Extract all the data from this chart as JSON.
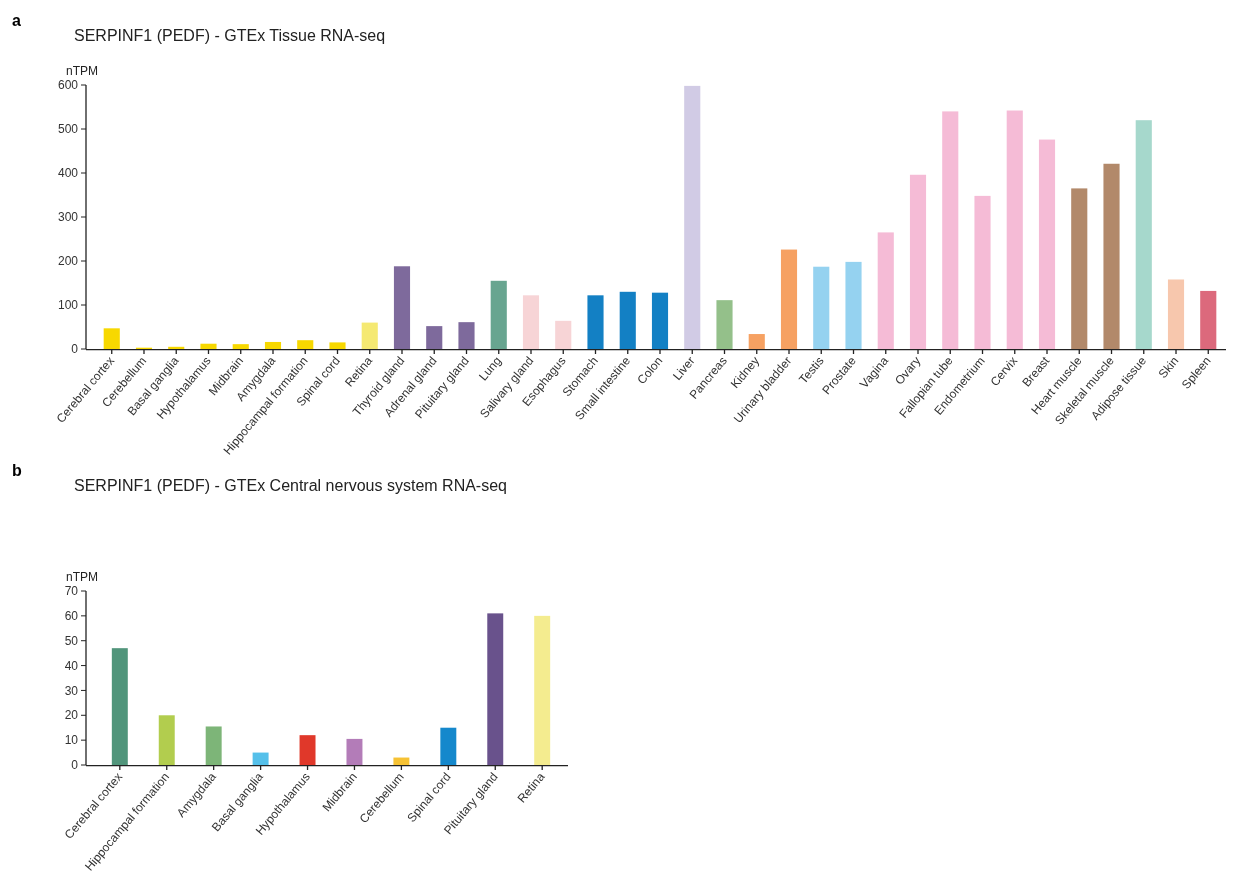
{
  "chart_data": [
    {
      "type": "bar",
      "title": "SERPINF1 (PEDF) - GTEx Tissue RNA-seq",
      "ylabel": "nTPM",
      "annotations": [
        "a"
      ],
      "categories": [
        "Cerebral cortex",
        "Cerebellum",
        "Basal ganglia",
        "Hypothalamus",
        "Midbrain",
        "Amygdala",
        "Hippocampal formation",
        "Spinal cord",
        "Retina",
        "Thyroid gland",
        "Adrenal gland",
        "Pituitary gland",
        "Lung",
        "Salivary gland",
        "Esophagus",
        "Stomach",
        "Small intestine",
        "Colon",
        "Liver",
        "Pancreas",
        "Kidney",
        "Urinary bladder",
        "Testis",
        "Prostate",
        "Vagina",
        "Ovary",
        "Fallopian tube",
        "Endometrium",
        "Cervix",
        "Breast",
        "Heart muscle",
        "Skeletal muscle",
        "Adipose tissue",
        "Skin",
        "Spleen"
      ],
      "values": [
        47,
        3,
        5,
        12,
        11,
        16,
        20,
        15,
        60,
        188,
        52,
        61,
        155,
        122,
        64,
        122,
        130,
        128,
        598,
        111,
        34,
        226,
        187,
        198,
        265,
        396,
        540,
        348,
        542,
        476,
        365,
        421,
        520,
        158,
        132
      ],
      "colors": [
        "#f7d800",
        "#f7d800",
        "#f7d800",
        "#f7d800",
        "#f7d800",
        "#f7d800",
        "#f7d800",
        "#f7d800",
        "#f5e972",
        "#7e6a9c",
        "#7e6a9c",
        "#7e6a9c",
        "#68a590",
        "#f7d4d6",
        "#f7d4d6",
        "#1380c4",
        "#1380c4",
        "#1380c4",
        "#d1cbe5",
        "#94c08a",
        "#f6a162",
        "#f6a162",
        "#95d2f0",
        "#95d2f0",
        "#f5bbd6",
        "#f5bbd6",
        "#f5bbd6",
        "#f5bbd6",
        "#f5bbd6",
        "#f5bbd6",
        "#b2896a",
        "#b2896a",
        "#a6d8cc",
        "#f7c7ad",
        "#dc697c"
      ],
      "ylim": [
        0,
        600
      ],
      "yticks": [
        0,
        100,
        200,
        300,
        400,
        500,
        600
      ]
    },
    {
      "type": "bar",
      "title": "SERPINF1 (PEDF) - GTEx Central nervous system RNA-seq",
      "ylabel": "nTPM",
      "annotations": [
        "b"
      ],
      "categories": [
        "Cerebral cortex",
        "Hippocampal formation",
        "Amygdala",
        "Basal ganglia",
        "Hypothalamus",
        "Midbrain",
        "Cerebellum",
        "Spinal cord",
        "Pituitary gland",
        "Retina"
      ],
      "values": [
        47,
        20,
        15.5,
        5,
        12,
        10.5,
        3,
        15,
        61,
        60
      ],
      "colors": [
        "#51957b",
        "#b2cd4e",
        "#7db578",
        "#55c0ea",
        "#e0382a",
        "#b37cb8",
        "#f6c234",
        "#1588cc",
        "#69528c",
        "#f4ec8f"
      ],
      "ylim": [
        0,
        70
      ],
      "yticks": [
        0,
        10,
        20,
        30,
        40,
        50,
        60,
        70
      ]
    }
  ]
}
